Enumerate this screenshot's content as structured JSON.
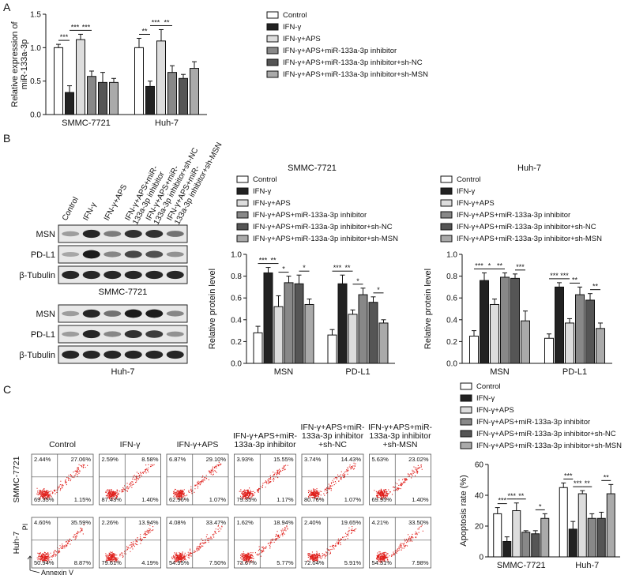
{
  "panels": [
    "A",
    "B",
    "C"
  ],
  "chart_data": [
    {
      "type": "bar",
      "y_label": [
        "Relative expression of",
        "miR-133a-3p"
      ],
      "categories": [
        "SMMC-7721",
        "Huh-7"
      ],
      "ylim": [
        0,
        1.5
      ],
      "yticks": [
        {
          "value": 0,
          "label": "0.0"
        },
        {
          "value": 0.5,
          "label": "0.5"
        },
        {
          "value": 1,
          "label": "1.0"
        },
        {
          "value": 1.5,
          "label": "1.5"
        }
      ],
      "series": [
        {
          "name": "Control",
          "color": "#ffffff",
          "values": [
            1.0,
            1.0
          ],
          "errors": [
            0.05,
            0.14
          ]
        },
        {
          "name": "IFN-γ",
          "color": "#222222",
          "values": [
            0.33,
            0.42
          ],
          "errors": [
            0.1,
            0.08
          ]
        },
        {
          "name": "IFN-γ+APS",
          "color": "#dddddd",
          "values": [
            1.12,
            1.1
          ],
          "errors": [
            0.08,
            0.17
          ]
        },
        {
          "name": "IFN-γ+APS+miR-133a-3p inhibitor",
          "color": "#888888",
          "values": [
            0.57,
            0.63
          ],
          "errors": [
            0.08,
            0.1
          ]
        },
        {
          "name": "IFN-γ+APS+miR-133a-3p inhibitor+sh-NC",
          "color": "#555555",
          "values": [
            0.48,
            0.54
          ],
          "errors": [
            0.15,
            0.06
          ]
        },
        {
          "name": "IFN-γ+APS+miR-133a-3p inhibitor+sh-MSN",
          "color": "#aaaaaa",
          "values": [
            0.48,
            0.69
          ],
          "errors": [
            0.06,
            0.1
          ]
        }
      ],
      "significance": [
        {
          "label": "***",
          "category": 0,
          "bars": [
            0,
            1
          ]
        },
        {
          "label": "***",
          "category": 0,
          "bars": [
            1,
            2
          ]
        },
        {
          "label": "***",
          "category": 0,
          "bars": [
            2,
            3
          ]
        },
        {
          "label": "**",
          "category": 1,
          "bars": [
            0,
            1
          ]
        },
        {
          "label": "***",
          "category": 1,
          "bars": [
            1,
            2
          ]
        },
        {
          "label": "**",
          "category": 1,
          "bars": [
            2,
            3
          ]
        }
      ]
    },
    {
      "type": "bar",
      "title": "SMMC-7721",
      "y_label": "Relative protein level",
      "categories": [
        "MSN",
        "PD-L1"
      ],
      "ylim": [
        0,
        1
      ],
      "yticks": [
        {
          "value": 0,
          "label": "0.0"
        },
        {
          "value": 0.2,
          "label": "0.2"
        },
        {
          "value": 0.4,
          "label": "0.4"
        },
        {
          "value": 0.6,
          "label": "0.6"
        },
        {
          "value": 0.8,
          "label": "0.8"
        },
        {
          "value": 1,
          "label": "1.0"
        }
      ],
      "series": [
        {
          "name": "Control",
          "color": "#ffffff",
          "values": [
            0.28,
            0.26
          ],
          "errors": [
            0.06,
            0.05
          ]
        },
        {
          "name": "IFN-γ",
          "color": "#222222",
          "values": [
            0.83,
            0.73
          ],
          "errors": [
            0.05,
            0.08
          ]
        },
        {
          "name": "IFN-γ+APS",
          "color": "#dddddd",
          "values": [
            0.52,
            0.45
          ],
          "errors": [
            0.1,
            0.04
          ]
        },
        {
          "name": "IFN-γ+APS+miR-133a-3p inhibitor",
          "color": "#888888",
          "values": [
            0.74,
            0.63
          ],
          "errors": [
            0.06,
            0.06
          ]
        },
        {
          "name": "IFN-γ+APS+miR-133a-3p inhibitor+sh-NC",
          "color": "#555555",
          "values": [
            0.73,
            0.56
          ],
          "errors": [
            0.08,
            0.05
          ]
        },
        {
          "name": "IFN-γ+APS+miR-133a-3p inhibitor+sh-MSN",
          "color": "#aaaaaa",
          "values": [
            0.54,
            0.37
          ],
          "errors": [
            0.05,
            0.03
          ]
        }
      ],
      "significance": [
        {
          "label": "***",
          "category": 0,
          "bars": [
            0,
            1
          ]
        },
        {
          "label": "**",
          "category": 0,
          "bars": [
            1,
            2
          ]
        },
        {
          "label": "*",
          "category": 0,
          "bars": [
            2,
            3
          ]
        },
        {
          "label": "*",
          "category": 0,
          "bars": [
            4,
            5
          ]
        },
        {
          "label": "***",
          "category": 1,
          "bars": [
            0,
            1
          ]
        },
        {
          "label": "**",
          "category": 1,
          "bars": [
            1,
            2
          ]
        },
        {
          "label": "*",
          "category": 1,
          "bars": [
            2,
            3
          ]
        },
        {
          "label": "*",
          "category": 1,
          "bars": [
            4,
            5
          ]
        }
      ]
    },
    {
      "type": "bar",
      "title": "Huh-7",
      "y_label": "Relative protein level",
      "categories": [
        "MSN",
        "PD-L1"
      ],
      "ylim": [
        0,
        1
      ],
      "yticks": [
        {
          "value": 0,
          "label": "0.0"
        },
        {
          "value": 0.2,
          "label": "0.2"
        },
        {
          "value": 0.4,
          "label": "0.4"
        },
        {
          "value": 0.6,
          "label": "0.6"
        },
        {
          "value": 0.8,
          "label": "0.8"
        },
        {
          "value": 1,
          "label": "1.0"
        }
      ],
      "series": [
        {
          "name": "Control",
          "color": "#ffffff",
          "values": [
            0.25,
            0.23
          ],
          "errors": [
            0.05,
            0.04
          ]
        },
        {
          "name": "IFN-γ",
          "color": "#222222",
          "values": [
            0.76,
            0.7
          ],
          "errors": [
            0.07,
            0.04
          ]
        },
        {
          "name": "IFN-γ+APS",
          "color": "#dddddd",
          "values": [
            0.54,
            0.37
          ],
          "errors": [
            0.05,
            0.04
          ]
        },
        {
          "name": "IFN-γ+APS+miR-133a-3p inhibitor",
          "color": "#888888",
          "values": [
            0.79,
            0.63
          ],
          "errors": [
            0.04,
            0.07
          ]
        },
        {
          "name": "IFN-γ+APS+miR-133a-3p inhibitor+sh-NC",
          "color": "#555555",
          "values": [
            0.78,
            0.58
          ],
          "errors": [
            0.04,
            0.06
          ]
        },
        {
          "name": "IFN-γ+APS+miR-133a-3p inhibitor+sh-MSN",
          "color": "#aaaaaa",
          "values": [
            0.39,
            0.32
          ],
          "errors": [
            0.09,
            0.05
          ]
        }
      ],
      "significance": [
        {
          "label": "***",
          "category": 0,
          "bars": [
            0,
            1
          ]
        },
        {
          "label": "*",
          "category": 0,
          "bars": [
            1,
            2
          ]
        },
        {
          "label": "**",
          "category": 0,
          "bars": [
            2,
            3
          ]
        },
        {
          "label": "***",
          "category": 0,
          "bars": [
            4,
            5
          ]
        },
        {
          "label": "***",
          "category": 1,
          "bars": [
            0,
            1
          ]
        },
        {
          "label": "***",
          "category": 1,
          "bars": [
            1,
            2
          ]
        },
        {
          "label": "**",
          "category": 1,
          "bars": [
            2,
            3
          ]
        },
        {
          "label": "**",
          "category": 1,
          "bars": [
            4,
            5
          ]
        }
      ]
    },
    {
      "type": "bar",
      "y_label": "Apoptosis rate (%)",
      "categories": [
        "SMMC-7721",
        "Huh-7"
      ],
      "ylim": [
        0,
        60
      ],
      "yticks": [
        0,
        20,
        40,
        60
      ],
      "series": [
        {
          "name": "Control",
          "color": "#ffffff",
          "values": [
            28,
            45
          ],
          "errors": [
            4,
            3
          ]
        },
        {
          "name": "IFN-γ",
          "color": "#222222",
          "values": [
            10,
            18
          ],
          "errors": [
            3,
            5
          ]
        },
        {
          "name": "IFN-γ+APS",
          "color": "#dddddd",
          "values": [
            30,
            41
          ],
          "errors": [
            5,
            2
          ]
        },
        {
          "name": "IFN-γ+APS+miR-133a-3p inhibitor",
          "color": "#888888",
          "values": [
            16,
            25
          ],
          "errors": [
            1,
            3
          ]
        },
        {
          "name": "IFN-γ+APS+miR-133a-3p inhibitor+sh-NC",
          "color": "#555555",
          "values": [
            15,
            25
          ],
          "errors": [
            2,
            4
          ]
        },
        {
          "name": "IFN-γ+APS+miR-133a-3p inhibitor+sh-MSN",
          "color": "#aaaaaa",
          "values": [
            25,
            41
          ],
          "errors": [
            3,
            6
          ]
        }
      ],
      "significance": [
        {
          "label": "***",
          "category": 0,
          "bars": [
            0,
            1
          ]
        },
        {
          "label": "***",
          "category": 0,
          "bars": [
            1,
            2
          ]
        },
        {
          "label": "**",
          "category": 0,
          "bars": [
            2,
            3
          ]
        },
        {
          "label": "*",
          "category": 0,
          "bars": [
            4,
            5
          ]
        },
        {
          "label": "***",
          "category": 1,
          "bars": [
            0,
            1
          ]
        },
        {
          "label": "***",
          "category": 1,
          "bars": [
            1,
            2
          ]
        },
        {
          "label": "**",
          "category": 1,
          "bars": [
            2,
            3
          ]
        },
        {
          "label": "**",
          "category": 1,
          "bars": [
            4,
            5
          ]
        }
      ]
    }
  ],
  "blots": {
    "lanes": [
      [
        "Control"
      ],
      [
        "IFN-γ"
      ],
      [
        "IFN-γ+APS"
      ],
      [
        "IFN-γ+APS+miR-",
        "133a-3p inhibitor"
      ],
      [
        "IFN-γ+APS+miR-",
        "133a-3p inhibitor+sh-NC"
      ],
      [
        "IFN-γ+APS+miR-",
        "133a-3p inhibitor+sh-MSN"
      ]
    ],
    "cell_lines": [
      {
        "name": "SMMC-7721",
        "rows": [
          "MSN",
          "PD-L1",
          "β-Tubulin"
        ]
      },
      {
        "name": "Huh-7",
        "rows": [
          "MSN",
          "PD-L1",
          "β-Tubulin"
        ]
      }
    ]
  },
  "flow": {
    "columns": [
      [
        "Control"
      ],
      [
        "IFN-γ"
      ],
      [
        "IFN-γ+APS"
      ],
      [
        "IFN-γ+APS+miR-",
        "133a-3p inhibitor"
      ],
      [
        "IFN-γ+APS+miR-",
        "133a-3p inhibitor",
        "+sh-NC"
      ],
      [
        "IFN-γ+APS+miR-",
        "133a-3p inhibitor",
        "+sh-MSN"
      ]
    ],
    "rows": [
      "SMMC-7721",
      "Huh-7"
    ],
    "y_axis": "PI",
    "x_axis": "Annexin V",
    "quadrants": [
      [
        [
          "2.44%",
          "27.06%",
          "69.35%",
          "1.15%"
        ],
        [
          "2.59%",
          "8.58%",
          "87.43%",
          "1.40%"
        ],
        [
          "6.87%",
          "29.10%",
          "62.96%",
          "1.07%"
        ],
        [
          "3.93%",
          "15.55%",
          "79.35%",
          "1.17%"
        ],
        [
          "3.74%",
          "14.43%",
          "80.76%",
          "1.07%"
        ],
        [
          "5.63%",
          "23.02%",
          "69.95%",
          "1.40%"
        ]
      ],
      [
        [
          "4.60%",
          "35.59%",
          "50.94%",
          "8.87%"
        ],
        [
          "2.26%",
          "13.94%",
          "79.61%",
          "4.19%"
        ],
        [
          "4.08%",
          "33.47%",
          "54.95%",
          "7.50%"
        ],
        [
          "1.62%",
          "18.94%",
          "73.67%",
          "5.77%"
        ],
        [
          "2.40%",
          "19.65%",
          "72.04%",
          "5.91%"
        ],
        [
          "4.21%",
          "33.50%",
          "54.31%",
          "7.98%"
        ]
      ]
    ]
  }
}
